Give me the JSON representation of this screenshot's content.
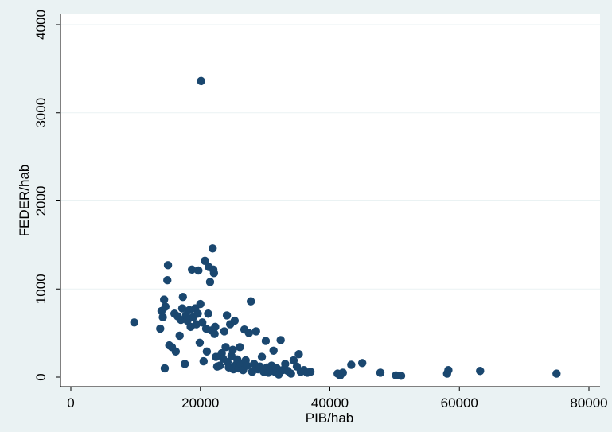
{
  "chart_data": {
    "type": "scatter",
    "xlabel": "PIB/hab",
    "ylabel": "FEDER/hab",
    "xlim": [
      0,
      80000
    ],
    "ylim": [
      0,
      4000
    ],
    "x_ticks": [
      "0",
      "20000",
      "40000",
      "60000",
      "80000"
    ],
    "y_ticks": [
      "0",
      "1000",
      "2000",
      "3000",
      "4000"
    ],
    "grid": "horizontal",
    "colors": {
      "marker": "#1a476f",
      "plot_bg": "#ffffff",
      "page_bg": "#eaf2f3",
      "grid": "#eaf2f3"
    },
    "points": [
      {
        "x": 9800,
        "y": 620
      },
      {
        "x": 13800,
        "y": 550
      },
      {
        "x": 14000,
        "y": 750
      },
      {
        "x": 14200,
        "y": 680
      },
      {
        "x": 14400,
        "y": 880
      },
      {
        "x": 14600,
        "y": 800
      },
      {
        "x": 14900,
        "y": 1100
      },
      {
        "x": 15000,
        "y": 1270
      },
      {
        "x": 14500,
        "y": 100
      },
      {
        "x": 15200,
        "y": 360
      },
      {
        "x": 15600,
        "y": 340
      },
      {
        "x": 16000,
        "y": 720
      },
      {
        "x": 16200,
        "y": 290
      },
      {
        "x": 16500,
        "y": 690
      },
      {
        "x": 16800,
        "y": 470
      },
      {
        "x": 17000,
        "y": 650
      },
      {
        "x": 17200,
        "y": 780
      },
      {
        "x": 17300,
        "y": 910
      },
      {
        "x": 17600,
        "y": 150
      },
      {
        "x": 17800,
        "y": 700
      },
      {
        "x": 18000,
        "y": 640
      },
      {
        "x": 18300,
        "y": 760
      },
      {
        "x": 18500,
        "y": 570
      },
      {
        "x": 18700,
        "y": 1220
      },
      {
        "x": 18900,
        "y": 680
      },
      {
        "x": 19200,
        "y": 780
      },
      {
        "x": 19400,
        "y": 600
      },
      {
        "x": 19600,
        "y": 720
      },
      {
        "x": 19700,
        "y": 1210
      },
      {
        "x": 19900,
        "y": 390
      },
      {
        "x": 20000,
        "y": 830
      },
      {
        "x": 20100,
        "y": 3360
      },
      {
        "x": 20300,
        "y": 620
      },
      {
        "x": 20500,
        "y": 180
      },
      {
        "x": 20700,
        "y": 1320
      },
      {
        "x": 20900,
        "y": 550
      },
      {
        "x": 21000,
        "y": 290
      },
      {
        "x": 21200,
        "y": 720
      },
      {
        "x": 21300,
        "y": 1250
      },
      {
        "x": 21500,
        "y": 1080
      },
      {
        "x": 21700,
        "y": 530
      },
      {
        "x": 21900,
        "y": 1460
      },
      {
        "x": 22000,
        "y": 1220
      },
      {
        "x": 22100,
        "y": 1180
      },
      {
        "x": 22200,
        "y": 490
      },
      {
        "x": 22300,
        "y": 570
      },
      {
        "x": 22400,
        "y": 230
      },
      {
        "x": 22600,
        "y": 120
      },
      {
        "x": 23000,
        "y": 130
      },
      {
        "x": 23300,
        "y": 270
      },
      {
        "x": 23500,
        "y": 210
      },
      {
        "x": 23700,
        "y": 520
      },
      {
        "x": 23900,
        "y": 340
      },
      {
        "x": 24100,
        "y": 700
      },
      {
        "x": 24200,
        "y": 170
      },
      {
        "x": 24400,
        "y": 110
      },
      {
        "x": 24600,
        "y": 600
      },
      {
        "x": 24800,
        "y": 240
      },
      {
        "x": 25000,
        "y": 310
      },
      {
        "x": 25100,
        "y": 90
      },
      {
        "x": 25300,
        "y": 640
      },
      {
        "x": 25500,
        "y": 140
      },
      {
        "x": 25700,
        "y": 200
      },
      {
        "x": 25900,
        "y": 100
      },
      {
        "x": 26100,
        "y": 340
      },
      {
        "x": 26300,
        "y": 150
      },
      {
        "x": 26600,
        "y": 80
      },
      {
        "x": 26800,
        "y": 540
      },
      {
        "x": 27000,
        "y": 190
      },
      {
        "x": 27200,
        "y": 130
      },
      {
        "x": 27500,
        "y": 500
      },
      {
        "x": 27800,
        "y": 860
      },
      {
        "x": 28000,
        "y": 60
      },
      {
        "x": 28300,
        "y": 150
      },
      {
        "x": 28600,
        "y": 520
      },
      {
        "x": 28900,
        "y": 90
      },
      {
        "x": 29200,
        "y": 120
      },
      {
        "x": 29500,
        "y": 230
      },
      {
        "x": 29800,
        "y": 60
      },
      {
        "x": 30100,
        "y": 410
      },
      {
        "x": 30300,
        "y": 110
      },
      {
        "x": 30500,
        "y": 50
      },
      {
        "x": 30800,
        "y": 80
      },
      {
        "x": 31000,
        "y": 130
      },
      {
        "x": 31300,
        "y": 300
      },
      {
        "x": 31500,
        "y": 60
      },
      {
        "x": 31800,
        "y": 100
      },
      {
        "x": 32100,
        "y": 30
      },
      {
        "x": 32400,
        "y": 420
      },
      {
        "x": 32700,
        "y": 80
      },
      {
        "x": 33100,
        "y": 150
      },
      {
        "x": 33500,
        "y": 70
      },
      {
        "x": 34000,
        "y": 40
      },
      {
        "x": 34400,
        "y": 190
      },
      {
        "x": 34900,
        "y": 120
      },
      {
        "x": 35200,
        "y": 260
      },
      {
        "x": 35500,
        "y": 60
      },
      {
        "x": 36000,
        "y": 80
      },
      {
        "x": 36500,
        "y": 50
      },
      {
        "x": 37000,
        "y": 60
      },
      {
        "x": 41200,
        "y": 40
      },
      {
        "x": 41600,
        "y": 20
      },
      {
        "x": 42000,
        "y": 50
      },
      {
        "x": 43300,
        "y": 140
      },
      {
        "x": 45000,
        "y": 160
      },
      {
        "x": 47800,
        "y": 50
      },
      {
        "x": 50200,
        "y": 20
      },
      {
        "x": 51000,
        "y": 15
      },
      {
        "x": 58100,
        "y": 40
      },
      {
        "x": 58300,
        "y": 80
      },
      {
        "x": 63200,
        "y": 70
      },
      {
        "x": 75000,
        "y": 40
      }
    ]
  }
}
